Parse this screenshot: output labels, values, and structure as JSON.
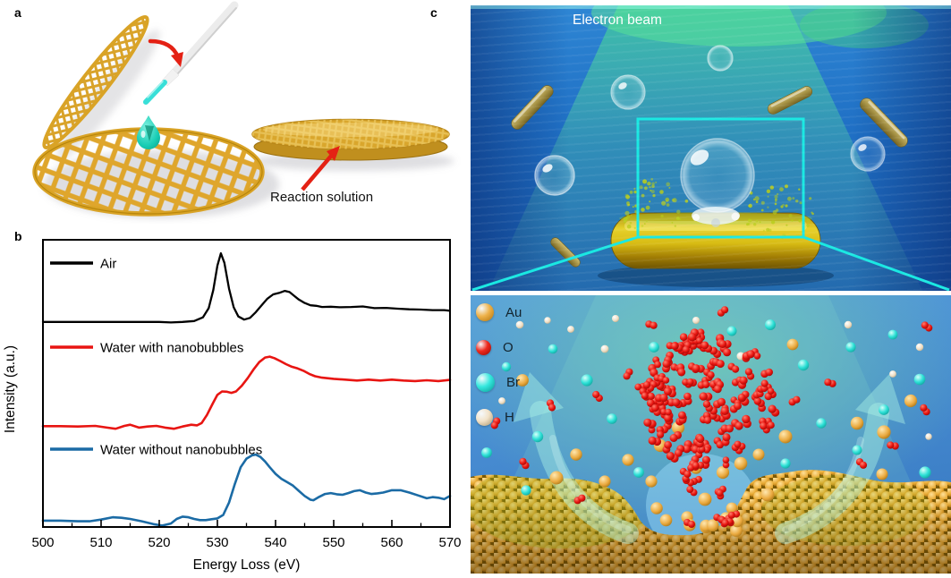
{
  "panel_a": {
    "label": "a",
    "annotation": "Reaction solution"
  },
  "panel_b": {
    "label": "b"
  },
  "panel_c": {
    "label": "c",
    "beam_label": "Electron beam",
    "legend": [
      {
        "symbol": "Au",
        "color": "#eeb24a",
        "edge": "#b5770e"
      },
      {
        "symbol": "O",
        "color": "#ee2a1e",
        "edge": "#9c0a06"
      },
      {
        "symbol": "Br",
        "color": "#35e8de",
        "edge": "#0a9e98"
      },
      {
        "symbol": "H",
        "color": "#f2e2c8",
        "edge": "#b09a72"
      }
    ]
  },
  "chart_data": {
    "type": "line",
    "title": "",
    "xlabel": "Energy Loss (eV)",
    "ylabel": "Intensity (a.u.)",
    "xlim": [
      500,
      570
    ],
    "ylim": [
      0,
      10
    ],
    "xticks": [
      500,
      510,
      520,
      530,
      540,
      550,
      560,
      570
    ],
    "grid": false,
    "legend_position": "stacked-left-inside",
    "series": [
      {
        "name": "Air",
        "color": "#000000",
        "points": [
          [
            500,
            7.14
          ],
          [
            504,
            7.14
          ],
          [
            508,
            7.14
          ],
          [
            512,
            7.14
          ],
          [
            516,
            7.14
          ],
          [
            520,
            7.14
          ],
          [
            522,
            7.12
          ],
          [
            524,
            7.14
          ],
          [
            526,
            7.17
          ],
          [
            527.5,
            7.3
          ],
          [
            528.5,
            7.62
          ],
          [
            529.3,
            8.25
          ],
          [
            530,
            9.1
          ],
          [
            530.6,
            9.53
          ],
          [
            531.2,
            9.2
          ],
          [
            532,
            8.3
          ],
          [
            532.8,
            7.65
          ],
          [
            533.6,
            7.33
          ],
          [
            534.6,
            7.22
          ],
          [
            535.6,
            7.28
          ],
          [
            536.6,
            7.48
          ],
          [
            537.6,
            7.72
          ],
          [
            538.6,
            7.95
          ],
          [
            539.6,
            8.1
          ],
          [
            540.6,
            8.15
          ],
          [
            541.6,
            8.22
          ],
          [
            542.4,
            8.18
          ],
          [
            543.2,
            8.05
          ],
          [
            544,
            7.92
          ],
          [
            545,
            7.8
          ],
          [
            546,
            7.72
          ],
          [
            547,
            7.7
          ],
          [
            548,
            7.66
          ],
          [
            549.5,
            7.67
          ],
          [
            551,
            7.65
          ],
          [
            553,
            7.66
          ],
          [
            555,
            7.68
          ],
          [
            557,
            7.62
          ],
          [
            559,
            7.63
          ],
          [
            561,
            7.6
          ],
          [
            563,
            7.58
          ],
          [
            565,
            7.57
          ],
          [
            567,
            7.55
          ],
          [
            569,
            7.55
          ],
          [
            570,
            7.53
          ]
        ]
      },
      {
        "name": "Water with nanobubbles",
        "color": "#e81512",
        "points": [
          [
            500,
            3.51
          ],
          [
            503,
            3.51
          ],
          [
            506,
            3.5
          ],
          [
            509,
            3.52
          ],
          [
            511,
            3.46
          ],
          [
            512.5,
            3.42
          ],
          [
            514,
            3.52
          ],
          [
            515,
            3.56
          ],
          [
            516.5,
            3.46
          ],
          [
            518,
            3.5
          ],
          [
            519.5,
            3.52
          ],
          [
            521,
            3.46
          ],
          [
            522.5,
            3.42
          ],
          [
            524,
            3.5
          ],
          [
            525.5,
            3.56
          ],
          [
            526.5,
            3.54
          ],
          [
            527.3,
            3.62
          ],
          [
            528.2,
            3.9
          ],
          [
            529.2,
            4.3
          ],
          [
            530,
            4.6
          ],
          [
            530.8,
            4.72
          ],
          [
            531.6,
            4.71
          ],
          [
            532.4,
            4.67
          ],
          [
            533.2,
            4.72
          ],
          [
            534.2,
            4.92
          ],
          [
            535.2,
            5.18
          ],
          [
            536.2,
            5.48
          ],
          [
            537.2,
            5.74
          ],
          [
            538.2,
            5.9
          ],
          [
            539,
            5.93
          ],
          [
            539.8,
            5.88
          ],
          [
            540.8,
            5.78
          ],
          [
            541.8,
            5.67
          ],
          [
            542.8,
            5.58
          ],
          [
            543.8,
            5.52
          ],
          [
            544.8,
            5.44
          ],
          [
            545.8,
            5.33
          ],
          [
            546.8,
            5.25
          ],
          [
            548,
            5.2
          ],
          [
            550,
            5.16
          ],
          [
            552,
            5.13
          ],
          [
            554,
            5.1
          ],
          [
            556,
            5.13
          ],
          [
            558,
            5.1
          ],
          [
            560,
            5.13
          ],
          [
            562,
            5.1
          ],
          [
            564,
            5.08
          ],
          [
            566,
            5.11
          ],
          [
            568,
            5.08
          ],
          [
            570,
            5.12
          ]
        ]
      },
      {
        "name": "Water without nanobubbles",
        "color": "#1b6ba5",
        "points": [
          [
            500,
            0.22
          ],
          [
            503,
            0.22
          ],
          [
            506,
            0.2
          ],
          [
            508,
            0.2
          ],
          [
            510,
            0.26
          ],
          [
            512,
            0.34
          ],
          [
            513.5,
            0.32
          ],
          [
            515,
            0.28
          ],
          [
            517,
            0.2
          ],
          [
            519,
            0.1
          ],
          [
            520.5,
            0.05
          ],
          [
            522,
            0.12
          ],
          [
            523,
            0.28
          ],
          [
            524,
            0.36
          ],
          [
            525,
            0.34
          ],
          [
            526,
            0.28
          ],
          [
            527,
            0.24
          ],
          [
            528,
            0.24
          ],
          [
            529,
            0.27
          ],
          [
            530,
            0.3
          ],
          [
            531,
            0.42
          ],
          [
            532,
            0.85
          ],
          [
            533,
            1.5
          ],
          [
            534,
            2.08
          ],
          [
            535,
            2.38
          ],
          [
            536,
            2.5
          ],
          [
            536.6,
            2.52
          ],
          [
            537.4,
            2.44
          ],
          [
            538.2,
            2.28
          ],
          [
            539,
            2.08
          ],
          [
            540,
            1.85
          ],
          [
            541,
            1.68
          ],
          [
            542,
            1.56
          ],
          [
            543,
            1.44
          ],
          [
            544,
            1.26
          ],
          [
            545,
            1.08
          ],
          [
            546,
            0.95
          ],
          [
            546.5,
            0.93
          ],
          [
            547.5,
            1.05
          ],
          [
            548.5,
            1.15
          ],
          [
            549.5,
            1.18
          ],
          [
            550.5,
            1.14
          ],
          [
            551.5,
            1.12
          ],
          [
            552.5,
            1.18
          ],
          [
            553.5,
            1.25
          ],
          [
            554.5,
            1.28
          ],
          [
            555.5,
            1.2
          ],
          [
            556.5,
            1.15
          ],
          [
            557.5,
            1.17
          ],
          [
            558.5,
            1.2
          ],
          [
            560,
            1.28
          ],
          [
            561.5,
            1.28
          ],
          [
            563,
            1.2
          ],
          [
            564.5,
            1.1
          ],
          [
            566,
            1.0
          ],
          [
            567,
            1.04
          ],
          [
            568,
            1.02
          ],
          [
            569,
            0.97
          ],
          [
            570,
            1.08
          ]
        ]
      }
    ]
  }
}
